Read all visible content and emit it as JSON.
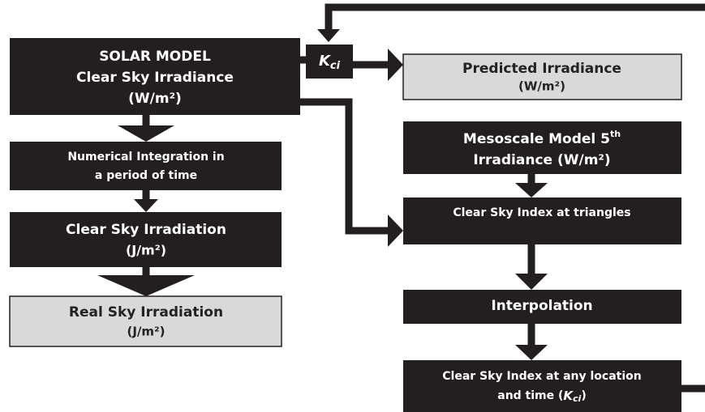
{
  "nodes": [
    {
      "lines": [
        "SOLAR MODEL",
        "Clear Sky Irradiance",
        "(W/m²)"
      ]
    },
    {
      "symbol": "K",
      "subscript": "ci"
    },
    {
      "lines": [
        "Predicted Irradiance",
        "(W/m²)"
      ]
    },
    {
      "lines": [
        "Numerical Integration in",
        "a period of time"
      ]
    },
    {
      "lines": [
        "Clear Sky Irradiation",
        "(J/m²)"
      ]
    },
    {
      "lines": [
        "Real Sky Irradiation",
        "(J/m²)"
      ]
    },
    {
      "lines": [
        "Mesoscale Model 5",
        "Irradiance (W/m²)"
      ],
      "superscript": "th"
    },
    {
      "lines": [
        "Clear Sky Index at triangles"
      ]
    },
    {
      "lines": [
        "Interpolation"
      ]
    },
    {
      "lines": [
        "Clear Sky Index at any location",
        "and time ("
      ],
      "symbol": "K",
      "subscript": "ci",
      "closing": ")"
    }
  ]
}
